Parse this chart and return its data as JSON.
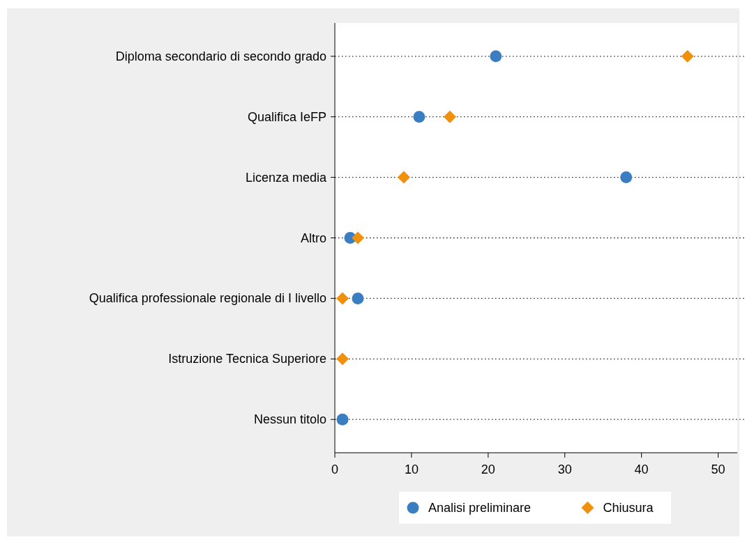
{
  "chart_data": {
    "type": "scatter",
    "orientation": "horizontal",
    "categories": [
      "Diploma secondario di secondo grado",
      "Qualifica IeFP",
      "Licenza media",
      "Altro",
      "Qualifica professionale regionale di I livello",
      "Istruzione Tecnica Superiore",
      "Nessun titolo"
    ],
    "series": [
      {
        "name": "Analisi preliminare",
        "color": "#3a7dc1",
        "marker": "circle",
        "values": [
          21,
          11,
          38,
          2,
          3,
          null,
          1
        ]
      },
      {
        "name": "Chiusura",
        "color": "#f0900c",
        "marker": "diamond",
        "values": [
          46,
          15,
          9,
          3,
          1,
          1,
          null
        ]
      }
    ],
    "xlim": [
      0,
      52.5
    ],
    "xticks": [
      0,
      10,
      20,
      30,
      40,
      50
    ],
    "grid": "y",
    "legend": "bottom"
  }
}
